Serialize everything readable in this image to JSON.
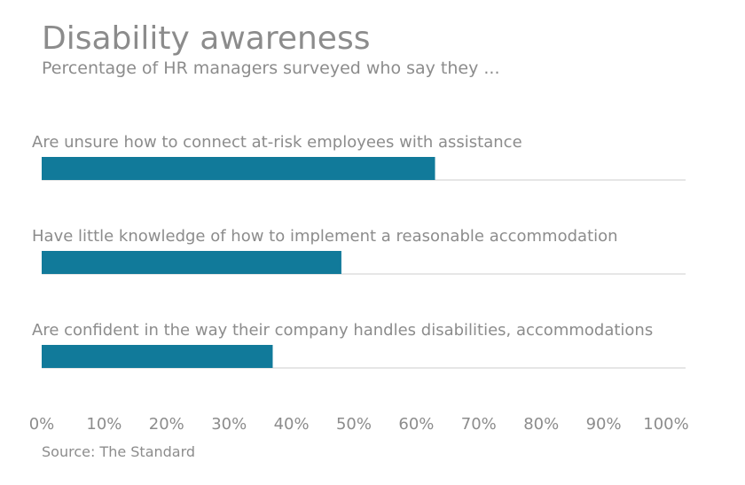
{
  "header": {
    "title": "Disability awareness",
    "subtitle": "Percentage of HR managers surveyed who say they ..."
  },
  "footer": {
    "source": "Source: The Standard"
  },
  "colors": {
    "bar": "#117a9a",
    "text": "#8c8c8c",
    "baseline": "#cccccc"
  },
  "chart_data": {
    "type": "bar",
    "orientation": "horizontal",
    "title": "Disability awareness",
    "subtitle": "Percentage of HR managers surveyed who say they ...",
    "categories": [
      "Are unsure how to connect at-risk employees with assistance",
      "Have little knowledge of how to implement a reasonable accommodation",
      "Are confident in the way their company handles disabilities, accommodations"
    ],
    "values": [
      63,
      48,
      37
    ],
    "unit": "%",
    "xlim": [
      0,
      100
    ],
    "ticks": [
      "0%",
      "10%",
      "20%",
      "30%",
      "40%",
      "50%",
      "60%",
      "70%",
      "80%",
      "90%",
      "100%"
    ],
    "tick_values": [
      0,
      10,
      20,
      30,
      40,
      50,
      60,
      70,
      80,
      90,
      100
    ],
    "grid": false,
    "legend": "none",
    "source": "Source: The Standard"
  }
}
